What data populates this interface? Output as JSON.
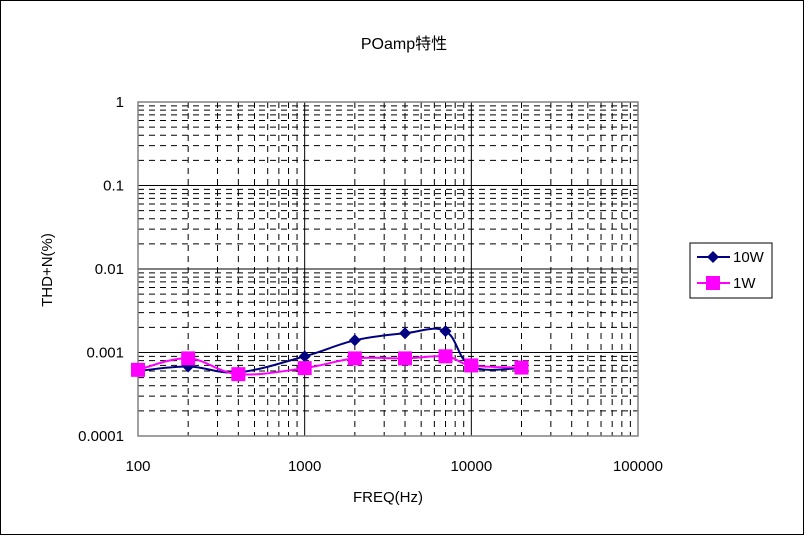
{
  "chart_data": {
    "type": "line",
    "title": "POamp特性",
    "xlabel": "FREQ(Hz)",
    "ylabel": "THD+N(%)",
    "x_scale": "log",
    "y_scale": "log",
    "xlim": [
      100,
      100000
    ],
    "ylim": [
      0.0001,
      1
    ],
    "x_tick_labels": [
      "100",
      "1000",
      "10000",
      "100000"
    ],
    "y_tick_labels": [
      "1",
      "0.1",
      "0.01",
      "0.001",
      "0.0001"
    ],
    "grid": true,
    "legend_position": "right",
    "series": [
      {
        "name": "10W",
        "color": "#000080",
        "marker": "diamond",
        "x": [
          100,
          200,
          400,
          1000,
          2000,
          4000,
          7000,
          10000,
          20000
        ],
        "y": [
          0.0006,
          0.00068,
          0.00058,
          0.0009,
          0.0014,
          0.0017,
          0.0018,
          0.00068,
          0.00065
        ]
      },
      {
        "name": "1W",
        "color": "#ff00ff",
        "marker": "square",
        "x": [
          100,
          200,
          400,
          1000,
          2000,
          4000,
          7000,
          10000,
          20000
        ],
        "y": [
          0.00062,
          0.00085,
          0.00055,
          0.00065,
          0.00085,
          0.00085,
          0.0009,
          0.0007,
          0.00066
        ]
      }
    ]
  }
}
